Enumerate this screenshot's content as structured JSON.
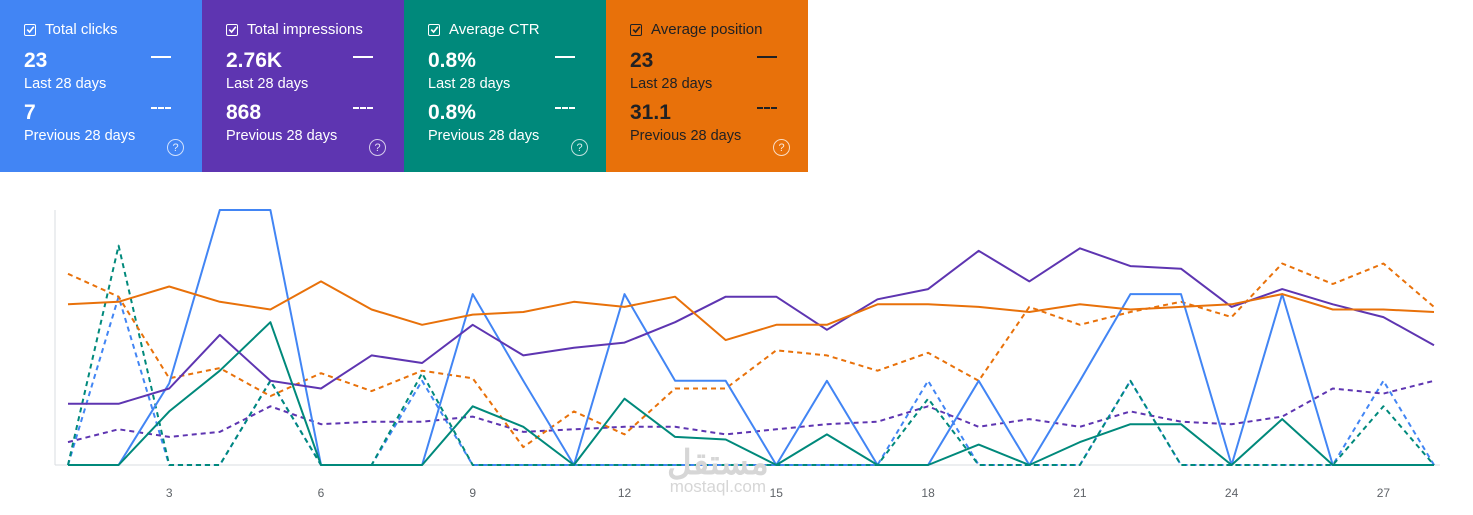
{
  "metrics": [
    {
      "title": "Total clicks",
      "current": "23",
      "current_label": "Last 28 days",
      "previous": "7",
      "previous_label": "Previous 28 days",
      "color": "#4285f4",
      "checked": true
    },
    {
      "title": "Total impressions",
      "current": "2.76K",
      "current_label": "Last 28 days",
      "previous": "868",
      "previous_label": "Previous 28 days",
      "color": "#5e35b1",
      "checked": true
    },
    {
      "title": "Average CTR",
      "current": "0.8%",
      "current_label": "Last 28 days",
      "previous": "0.8%",
      "previous_label": "Previous 28 days",
      "color": "#00897b",
      "checked": true
    },
    {
      "title": "Average position",
      "current": "23",
      "current_label": "Last 28 days",
      "previous": "31.1",
      "previous_label": "Previous 28 days",
      "color": "#e8710a",
      "checked": true
    }
  ],
  "icons": {
    "checkbox": "checkbox-checked-icon",
    "help": "help-circle-icon",
    "solid_legend": "solid-line-legend-icon",
    "dashed_legend": "dashed-line-legend-icon"
  },
  "help_glyph": "?",
  "watermark": {
    "arabic": "مستقل",
    "latin": "mostaql.com"
  },
  "chart_data": {
    "type": "line",
    "x": [
      1,
      2,
      3,
      4,
      5,
      6,
      7,
      8,
      9,
      10,
      11,
      12,
      13,
      14,
      15,
      16,
      17,
      18,
      19,
      20,
      21,
      22,
      23,
      24,
      25,
      26,
      27,
      28
    ],
    "xticks": [
      3,
      6,
      9,
      12,
      15,
      18,
      21,
      24,
      27
    ],
    "normalized": true,
    "ylim": [
      0,
      100
    ],
    "grid": false,
    "series": [
      {
        "metric": "Total clicks",
        "period": "Last 28 days",
        "color": "#4285f4",
        "dash": false,
        "values": [
          0,
          0,
          32,
          100,
          100,
          0,
          0,
          0,
          67,
          33,
          0,
          67,
          33,
          33,
          0,
          33,
          0,
          0,
          33,
          0,
          33,
          67,
          67,
          0,
          67,
          0,
          0,
          0
        ]
      },
      {
        "metric": "Total clicks",
        "period": "Previous 28 days",
        "color": "#4285f4",
        "dash": true,
        "values": [
          0,
          66,
          0,
          0,
          33,
          0,
          0,
          33,
          0,
          0,
          0,
          0,
          0,
          0,
          0,
          0,
          0,
          33,
          0,
          0,
          0,
          33,
          0,
          0,
          0,
          0,
          33,
          0
        ]
      },
      {
        "metric": "Total impressions",
        "period": "Last 28 days",
        "color": "#5e35b1",
        "dash": false,
        "values": [
          24,
          24,
          30,
          51,
          33,
          30,
          43,
          40,
          55,
          43,
          46,
          48,
          56,
          66,
          66,
          53,
          65,
          69,
          84,
          72,
          85,
          78,
          77,
          62,
          69,
          63,
          58,
          47
        ]
      },
      {
        "metric": "Total impressions",
        "period": "Previous 28 days",
        "color": "#5e35b1",
        "dash": true,
        "values": [
          9,
          14,
          11,
          13,
          23,
          16,
          17,
          17,
          19,
          13,
          14,
          15,
          15,
          12,
          14,
          16,
          17,
          23,
          15,
          18,
          15,
          21,
          17,
          16,
          19,
          30,
          28,
          33
        ]
      },
      {
        "metric": "Average CTR",
        "period": "Last 28 days",
        "color": "#00897b",
        "dash": false,
        "values": [
          0,
          0,
          21,
          37,
          56,
          0,
          0,
          0,
          23,
          15,
          0,
          26,
          11,
          10,
          0,
          12,
          0,
          0,
          8,
          0,
          9,
          16,
          16,
          0,
          18,
          0,
          0,
          0
        ]
      },
      {
        "metric": "Average CTR",
        "period": "Previous 28 days",
        "color": "#00897b",
        "dash": true,
        "values": [
          0,
          86,
          0,
          0,
          33,
          0,
          0,
          36,
          0,
          0,
          0,
          0,
          0,
          0,
          0,
          0,
          0,
          26,
          0,
          0,
          0,
          33,
          0,
          0,
          0,
          0,
          23,
          0
        ]
      },
      {
        "metric": "Average position",
        "period": "Last 28 days",
        "color": "#e8710a",
        "dash": false,
        "values": [
          63,
          64,
          70,
          64,
          61,
          72,
          61,
          55,
          59,
          60,
          64,
          62,
          66,
          49,
          55,
          55,
          63,
          63,
          62,
          60,
          63,
          61,
          62,
          63,
          67,
          61,
          61,
          60
        ]
      },
      {
        "metric": "Average position",
        "period": "Previous 28 days",
        "color": "#e8710a",
        "dash": true,
        "values": [
          75,
          66,
          34,
          38,
          27,
          36,
          29,
          37,
          34,
          7,
          21,
          12,
          30,
          30,
          45,
          43,
          37,
          44,
          33,
          62,
          55,
          60,
          64,
          58,
          79,
          71,
          79,
          62
        ]
      }
    ]
  }
}
